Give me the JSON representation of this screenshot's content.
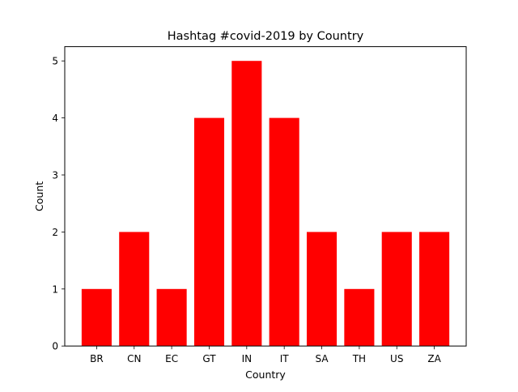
{
  "chart_data": {
    "type": "bar",
    "title": "Hashtag #covid-2019 by Country",
    "xlabel": "Country",
    "ylabel": "Count",
    "categories": [
      "BR",
      "CN",
      "EC",
      "GT",
      "IN",
      "IT",
      "SA",
      "TH",
      "US",
      "ZA"
    ],
    "values": [
      1,
      2,
      1,
      4,
      5,
      4,
      2,
      1,
      2,
      2
    ],
    "ylim": [
      0,
      5.25
    ],
    "yticks": [
      0,
      1,
      2,
      3,
      4,
      5
    ],
    "grid": false,
    "bar_color": "#ff0000"
  }
}
